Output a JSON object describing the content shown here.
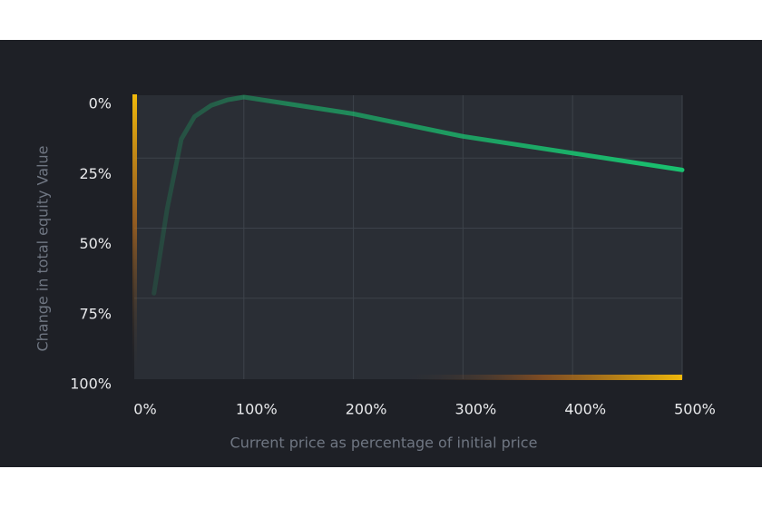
{
  "chart_data": {
    "type": "line",
    "x_label": "Current price as percentage of initial price",
    "y_label": "Change in total equity Value",
    "x": [
      18,
      30,
      43,
      55,
      70,
      85,
      100,
      200,
      300,
      400,
      500
    ],
    "series": [
      {
        "color": "#19c270",
        "values": [
          70,
          40,
          15,
          7,
          3,
          1,
          0,
          6,
          14,
          20,
          26
        ]
      }
    ],
    "xlim": [
      0,
      500
    ],
    "xticks": [
      {
        "value": 0,
        "label": "0%"
      },
      {
        "value": 100,
        "label": "100%"
      },
      {
        "value": 200,
        "label": "200%"
      },
      {
        "value": 300,
        "label": "300%"
      },
      {
        "value": 400,
        "label": "400%"
      },
      {
        "value": 500,
        "label": "500%"
      }
    ],
    "ylim": [
      0,
      100
    ],
    "yticks": [
      {
        "value": 0,
        "label": "0%"
      },
      {
        "value": 25,
        "label": "25%"
      },
      {
        "value": 50,
        "label": "50%"
      },
      {
        "value": 75,
        "label": "75%"
      },
      {
        "value": 100,
        "label": "100%"
      }
    ],
    "invert_y": true,
    "grid": true
  }
}
